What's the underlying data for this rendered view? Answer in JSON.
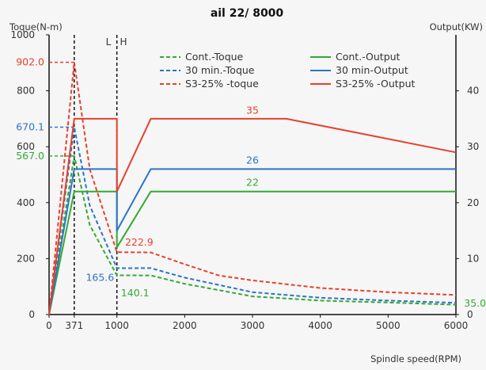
{
  "chart_data": {
    "type": "line",
    "title": "ail 22/ 8000",
    "xlabel": "Spindle speed(RPM)",
    "ylabel_left": "Toque(N-m)",
    "ylabel_right": "Output(KW)",
    "xlim": [
      0,
      6000
    ],
    "ylim_left": [
      0,
      1000
    ],
    "ylim_right": [
      0,
      50
    ],
    "x_ticks": [
      "0",
      "371",
      "1000",
      "2000",
      "3000",
      "4000",
      "5000",
      "6000"
    ],
    "y_left_ticks": [
      "0",
      "200",
      "400",
      "600",
      "800",
      "1000"
    ],
    "y_right_ticks": [
      "0",
      "10",
      "20",
      "30",
      "40"
    ],
    "region_labels": {
      "low": "L",
      "high": "H"
    },
    "colors": {
      "green": "#33aa33",
      "blue": "#2b74c8",
      "red": "#e8402c",
      "axis": "#111111"
    },
    "series": [
      {
        "name": "Cont.-Toque",
        "axis": "left",
        "style": "dashed",
        "color": "green",
        "points": [
          [
            0,
            0
          ],
          [
            371,
            567
          ],
          [
            600,
            320
          ],
          [
            1000,
            140.1
          ],
          [
            1500,
            140
          ],
          [
            2000,
            110
          ],
          [
            3000,
            65
          ],
          [
            4000,
            50
          ],
          [
            5000,
            43
          ],
          [
            6000,
            35
          ]
        ]
      },
      {
        "name": "30 min.-Toque",
        "axis": "left",
        "style": "dashed",
        "color": "blue",
        "points": [
          [
            0,
            0
          ],
          [
            371,
            670.1
          ],
          [
            600,
            390
          ],
          [
            1000,
            165.6
          ],
          [
            1500,
            166
          ],
          [
            2000,
            132
          ],
          [
            3000,
            80
          ],
          [
            4000,
            60
          ],
          [
            5000,
            50
          ],
          [
            6000,
            42
          ]
        ]
      },
      {
        "name": "S3-25% -toque",
        "axis": "left",
        "style": "dashed",
        "color": "red",
        "points": [
          [
            0,
            0
          ],
          [
            371,
            902.0
          ],
          [
            600,
            520
          ],
          [
            1000,
            222.9
          ],
          [
            1500,
            222
          ],
          [
            2000,
            180
          ],
          [
            2500,
            140
          ],
          [
            3000,
            122
          ],
          [
            4000,
            95
          ],
          [
            5000,
            80
          ],
          [
            6000,
            70
          ]
        ]
      },
      {
        "name": "Cont.-Output",
        "axis": "right",
        "style": "solid",
        "color": "green",
        "points": [
          [
            0,
            0
          ],
          [
            371,
            22
          ],
          [
            1000,
            22
          ],
          [
            1000,
            12
          ],
          [
            1500,
            22
          ],
          [
            6000,
            22
          ]
        ]
      },
      {
        "name": "30 min-Output",
        "axis": "right",
        "style": "solid",
        "color": "blue",
        "points": [
          [
            0,
            0
          ],
          [
            371,
            26
          ],
          [
            1000,
            26
          ],
          [
            1000,
            15
          ],
          [
            1500,
            26
          ],
          [
            6000,
            26
          ]
        ]
      },
      {
        "name": "S3-25% -Output",
        "axis": "right",
        "style": "solid",
        "color": "red",
        "points": [
          [
            0,
            0
          ],
          [
            371,
            35
          ],
          [
            1000,
            35
          ],
          [
            1000,
            22
          ],
          [
            1500,
            35
          ],
          [
            3500,
            35
          ],
          [
            6000,
            29
          ]
        ]
      }
    ],
    "reference_lines": [
      {
        "axis": "left",
        "value": 902.0,
        "label": "902.0",
        "color": "red"
      },
      {
        "axis": "left",
        "value": 670.1,
        "label": "670.1",
        "color": "blue"
      },
      {
        "axis": "left",
        "value": 567.0,
        "label": "567.0",
        "color": "green"
      }
    ],
    "annotations": [
      {
        "text": "35",
        "x": 3000,
        "y": 35.9,
        "axis": "right",
        "color": "red",
        "anchor": "middle"
      },
      {
        "text": "26",
        "x": 3000,
        "y": 27.0,
        "axis": "right",
        "color": "blue",
        "anchor": "middle"
      },
      {
        "text": "22",
        "x": 3000,
        "y": 23.0,
        "axis": "right",
        "color": "green",
        "anchor": "middle"
      },
      {
        "text": "222.9",
        "x": 1120,
        "y": 246,
        "axis": "left",
        "color": "red",
        "anchor": "start"
      },
      {
        "text": "165.6",
        "x": 960,
        "y": 120,
        "axis": "left",
        "color": "blue",
        "anchor": "end"
      },
      {
        "text": "140.1",
        "x": 1060,
        "y": 65,
        "axis": "left",
        "color": "green",
        "anchor": "start"
      },
      {
        "text": "35.0",
        "x": 6120,
        "y": 28,
        "axis": "left",
        "color": "green",
        "anchor": "start"
      }
    ]
  }
}
